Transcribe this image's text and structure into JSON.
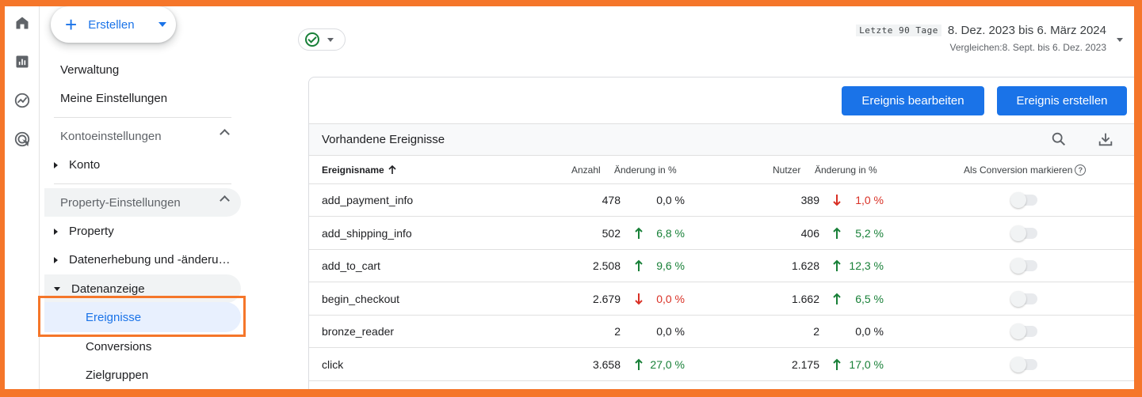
{
  "colors": {
    "accent": "#1a73e8",
    "positive": "#188038",
    "negative": "#d93025",
    "highlight": "#f5762a"
  },
  "create": {
    "label": "Erstellen"
  },
  "nav": {
    "admin": "Verwaltung",
    "my_settings": "Meine Einstellungen",
    "account_settings": "Kontoeinstellungen",
    "account": "Konto",
    "property_settings": "Property-Einstellungen",
    "property": "Property",
    "data_collection": "Datenerhebung und -änderu…",
    "data_display": "Datenanzeige",
    "events": "Ereignisse",
    "conversions": "Conversions",
    "audiences": "Zielgruppen"
  },
  "date": {
    "tag": "Letzte 90 Tage",
    "range": "8. Dez. 2023 bis 6. März 2024",
    "compare": "Vergleichen:8. Sept. bis 6. Dez. 2023"
  },
  "toolbar": {
    "edit_event": "Ereignis bearbeiten",
    "create_event": "Ereignis erstellen"
  },
  "table": {
    "title": "Vorhandene Ereignisse",
    "headers": {
      "name": "Ereignisname",
      "count": "Anzahl",
      "count_change": "Änderung in %",
      "users": "Nutzer",
      "users_change": "Änderung in %",
      "conversion": "Als Conversion markieren"
    },
    "rows": [
      {
        "name": "add_payment_info",
        "count": "478",
        "count_dir": "none",
        "count_change": "0,0 %",
        "users": "389",
        "users_dir": "down",
        "users_change": "1,0 %"
      },
      {
        "name": "add_shipping_info",
        "count": "502",
        "count_dir": "up",
        "count_change": "6,8 %",
        "users": "406",
        "users_dir": "up",
        "users_change": "5,2 %"
      },
      {
        "name": "add_to_cart",
        "count": "2.508",
        "count_dir": "up",
        "count_change": "9,6 %",
        "users": "1.628",
        "users_dir": "up",
        "users_change": "12,3 %"
      },
      {
        "name": "begin_checkout",
        "count": "2.679",
        "count_dir": "down",
        "count_change": "0,0 %",
        "users": "1.662",
        "users_dir": "up",
        "users_change": "6,5 %"
      },
      {
        "name": "bronze_reader",
        "count": "2",
        "count_dir": "none",
        "count_change": "0,0 %",
        "users": "2",
        "users_dir": "none",
        "users_change": "0,0 %"
      },
      {
        "name": "click",
        "count": "3.658",
        "count_dir": "up",
        "count_change": "27,0 %",
        "users": "2.175",
        "users_dir": "up",
        "users_change": "17,0 %"
      }
    ]
  },
  "icons": [
    "home-icon",
    "reports-icon",
    "explore-icon",
    "advertising-icon",
    "search-icon",
    "download-icon",
    "help-icon",
    "sort-arrow-up-icon"
  ]
}
